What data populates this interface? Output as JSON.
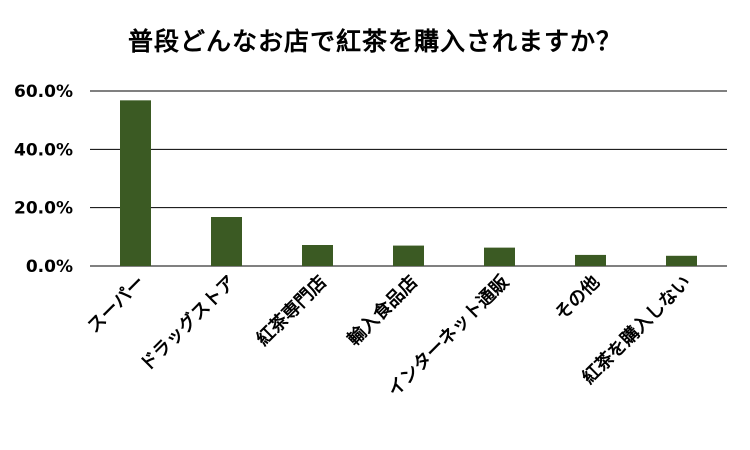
{
  "chart_data": {
    "type": "bar",
    "title": "普段どんなお店で紅茶を購入されますか？",
    "xlabel": "",
    "ylabel": "",
    "categories": [
      "スーパー",
      "ドラッグストア",
      "紅茶専門店",
      "輸入食品店",
      "インターネット通販",
      "その他",
      "紅茶を購入しない"
    ],
    "values": [
      56.8,
      16.8,
      7.2,
      7.0,
      6.3,
      3.8,
      3.5
    ],
    "ylim": [
      0,
      60
    ],
    "yticks": [
      "0.0%",
      "20.0%",
      "40.0%",
      "60.0%"
    ],
    "ytick_values": [
      0,
      20,
      40,
      60
    ],
    "grid": true,
    "legend": "none",
    "bar_color": "#3b5a23",
    "grid_color": "#000000"
  }
}
